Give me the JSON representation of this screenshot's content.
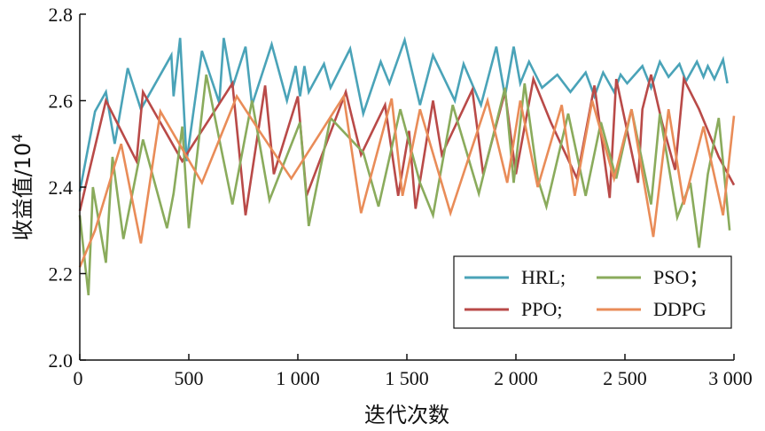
{
  "chart_data": {
    "type": "line",
    "xlabel": "迭代次数",
    "ylabel": "收益值/10",
    "ylabel_sup": "4",
    "xlim": [
      0,
      3000
    ],
    "ylim": [
      2.0,
      2.8
    ],
    "x_ticks": [
      0,
      500,
      1000,
      1500,
      2000,
      2500,
      3000
    ],
    "x_tick_labels": [
      "0",
      "500",
      "1 000",
      "1 500",
      "2 000",
      "2 500",
      "3 000"
    ],
    "y_ticks": [
      2.0,
      2.2,
      2.4,
      2.6,
      2.8
    ],
    "y_tick_labels": [
      "2.0",
      "2.2",
      "2.4",
      "2.6",
      "2.8"
    ],
    "grid": false,
    "legend_position": "bottom-right",
    "series": [
      {
        "name": "HRL;",
        "color": "#4aa3b8",
        "x": [
          0,
          70,
          120,
          160,
          220,
          280,
          420,
          430,
          460,
          490,
          560,
          640,
          660,
          700,
          760,
          790,
          880,
          950,
          990,
          1010,
          1030,
          1050,
          1120,
          1150,
          1240,
          1300,
          1380,
          1420,
          1490,
          1560,
          1620,
          1720,
          1760,
          1840,
          1910,
          1950,
          1990,
          2020,
          2060,
          2120,
          2190,
          2250,
          2320,
          2360,
          2400,
          2450,
          2480,
          2510,
          2580,
          2620,
          2660,
          2700,
          2750,
          2780,
          2830,
          2860,
          2880,
          2910,
          2950,
          2970
        ],
        "y": [
          2.39,
          2.575,
          2.62,
          2.5,
          2.675,
          2.58,
          2.705,
          2.61,
          2.745,
          2.46,
          2.715,
          2.595,
          2.745,
          2.63,
          2.725,
          2.59,
          2.73,
          2.6,
          2.68,
          2.61,
          2.68,
          2.62,
          2.685,
          2.63,
          2.72,
          2.57,
          2.69,
          2.64,
          2.74,
          2.59,
          2.705,
          2.6,
          2.685,
          2.59,
          2.725,
          2.61,
          2.725,
          2.64,
          2.69,
          2.63,
          2.66,
          2.62,
          2.665,
          2.61,
          2.665,
          2.62,
          2.66,
          2.64,
          2.68,
          2.63,
          2.69,
          2.655,
          2.685,
          2.645,
          2.69,
          2.655,
          2.68,
          2.65,
          2.695,
          2.64
        ]
      },
      {
        "name": "PPO;",
        "color": "#b94a48",
        "x": [
          0,
          120,
          260,
          290,
          470,
          700,
          760,
          850,
          890,
          1000,
          1040,
          1220,
          1290,
          1400,
          1460,
          1510,
          1540,
          1620,
          1660,
          1800,
          1850,
          1950,
          2000,
          2080,
          2160,
          2280,
          2360,
          2430,
          2460,
          2560,
          2580,
          2620,
          2670,
          2730,
          2770,
          2840,
          2930,
          3000
        ],
        "y": [
          2.345,
          2.6,
          2.46,
          2.62,
          2.46,
          2.64,
          2.335,
          2.635,
          2.43,
          2.61,
          2.38,
          2.62,
          2.475,
          2.59,
          2.38,
          2.53,
          2.35,
          2.6,
          2.475,
          2.625,
          2.43,
          2.62,
          2.43,
          2.65,
          2.55,
          2.42,
          2.635,
          2.375,
          2.65,
          2.41,
          2.58,
          2.66,
          2.55,
          2.44,
          2.65,
          2.58,
          2.47,
          2.405
        ]
      },
      {
        "name": "PSO；",
        "color": "#8aab5c",
        "x": [
          0,
          40,
          60,
          120,
          150,
          200,
          290,
          400,
          430,
          470,
          500,
          580,
          700,
          790,
          870,
          1010,
          1050,
          1150,
          1300,
          1370,
          1470,
          1560,
          1620,
          1710,
          1830,
          1950,
          1990,
          2040,
          2100,
          2140,
          2240,
          2320,
          2390,
          2460,
          2530,
          2620,
          2660,
          2740,
          2800,
          2840,
          2880,
          2930,
          2980
        ],
        "y": [
          2.335,
          2.15,
          2.4,
          2.225,
          2.47,
          2.28,
          2.51,
          2.305,
          2.385,
          2.54,
          2.305,
          2.66,
          2.36,
          2.6,
          2.37,
          2.55,
          2.31,
          2.56,
          2.48,
          2.355,
          2.58,
          2.41,
          2.335,
          2.59,
          2.385,
          2.63,
          2.41,
          2.64,
          2.42,
          2.355,
          2.57,
          2.38,
          2.55,
          2.42,
          2.58,
          2.36,
          2.57,
          2.33,
          2.41,
          2.26,
          2.43,
          2.56,
          2.3
        ]
      },
      {
        "name": "DDPG",
        "color": "#e98c58",
        "x": [
          0,
          70,
          190,
          280,
          370,
          560,
          720,
          830,
          970,
          1210,
          1290,
          1430,
          1480,
          1560,
          1700,
          1870,
          1960,
          2020,
          2100,
          2210,
          2270,
          2350,
          2450,
          2530,
          2630,
          2700,
          2770,
          2860,
          2950,
          3000
        ],
        "y": [
          2.215,
          2.3,
          2.5,
          2.27,
          2.575,
          2.41,
          2.61,
          2.525,
          2.42,
          2.61,
          2.34,
          2.605,
          2.38,
          2.58,
          2.34,
          2.6,
          2.41,
          2.6,
          2.4,
          2.59,
          2.38,
          2.6,
          2.42,
          2.58,
          2.285,
          2.58,
          2.36,
          2.54,
          2.335,
          2.565
        ]
      }
    ]
  }
}
